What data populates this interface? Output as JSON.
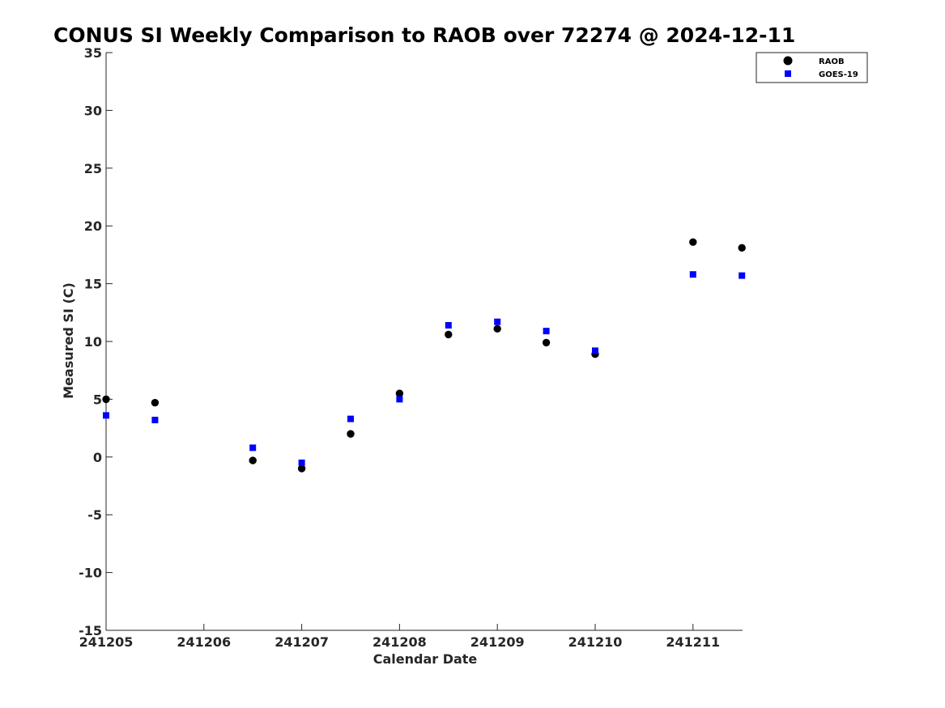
{
  "chart_data": {
    "type": "scatter",
    "title": "CONUS SI Weekly Comparison to RAOB over 72274 @ 2024-12-11",
    "xlabel": "Calendar Date",
    "ylabel": "Measured SI (C)",
    "xlim": [
      "241205",
      "241211 12Z"
    ],
    "ylim": [
      -15,
      35
    ],
    "x_tick_labels": [
      "241205",
      "241206",
      "241207",
      "241208",
      "241209",
      "241210",
      "241211"
    ],
    "y_ticks": [
      -15,
      -10,
      -5,
      0,
      5,
      10,
      15,
      20,
      25,
      30,
      35
    ],
    "grid": false,
    "legend_position": "top-right",
    "series": [
      {
        "name": "RAOB",
        "color": "#000000",
        "marker": "circle",
        "points": [
          {
            "x": "241205 00Z",
            "y": 5.0
          },
          {
            "x": "241205 12Z",
            "y": 4.7
          },
          {
            "x": "241206 12Z",
            "y": -0.3
          },
          {
            "x": "241207 00Z",
            "y": -1.0
          },
          {
            "x": "241207 12Z",
            "y": 2.0
          },
          {
            "x": "241208 00Z",
            "y": 5.5
          },
          {
            "x": "241208 12Z",
            "y": 10.6
          },
          {
            "x": "241209 00Z",
            "y": 11.1
          },
          {
            "x": "241209 12Z",
            "y": 9.9
          },
          {
            "x": "241210 00Z",
            "y": 8.9
          },
          {
            "x": "241211 00Z",
            "y": 18.6
          },
          {
            "x": "241211 12Z",
            "y": 18.1
          }
        ]
      },
      {
        "name": "GOES-19",
        "color": "#0000ff",
        "marker": "square",
        "points": [
          {
            "x": "241205 00Z",
            "y": 3.6
          },
          {
            "x": "241205 12Z",
            "y": 3.2
          },
          {
            "x": "241206 12Z",
            "y": 0.8
          },
          {
            "x": "241207 00Z",
            "y": -0.5
          },
          {
            "x": "241207 12Z",
            "y": 3.3
          },
          {
            "x": "241208 00Z",
            "y": 5.0
          },
          {
            "x": "241208 12Z",
            "y": 11.4
          },
          {
            "x": "241209 00Z",
            "y": 11.7
          },
          {
            "x": "241209 12Z",
            "y": 10.9
          },
          {
            "x": "241210 00Z",
            "y": 9.2
          },
          {
            "x": "241211 00Z",
            "y": 15.8
          },
          {
            "x": "241211 12Z",
            "y": 15.7
          }
        ]
      }
    ]
  }
}
